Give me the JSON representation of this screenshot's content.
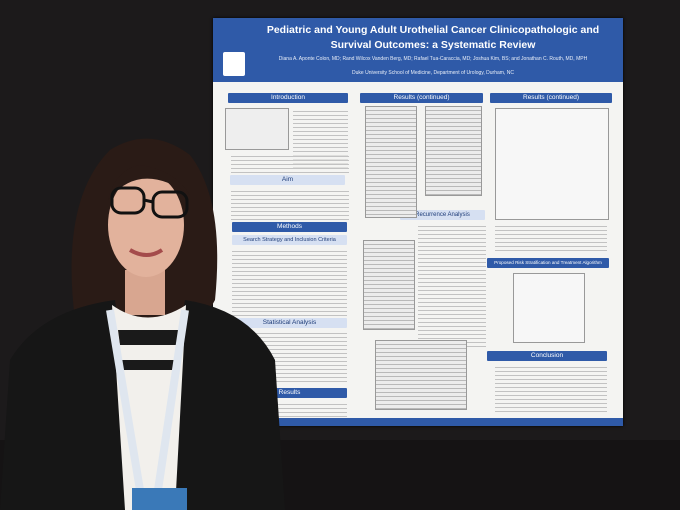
{
  "poster": {
    "title": "Pediatric and Young Adult Urothelial Cancer Clinicopathologic and Survival Outcomes: a Systematic Review",
    "authors": "Diana A. Aponte Colon, MD; Rand Wilcox Vanden Berg, MD; Rafael Tua-Caraccia, MD; Joshua Kim, BS; and Jonathan C. Routh, MD, MPH",
    "affiliation": "Duke University School of Medicine, Department of Urology, Durham, NC",
    "sections": [
      {
        "heading": "Introduction"
      },
      {
        "heading": "Results (continued)"
      },
      {
        "heading": "Results (continued)"
      },
      {
        "heading": "Aim"
      },
      {
        "heading": "Methods"
      },
      {
        "heading": "Search Strategy and Inclusion Criteria"
      },
      {
        "heading": "Recurrence Analysis"
      },
      {
        "heading": "Proposed Risk Stratification and Treatment Algorithm"
      },
      {
        "heading": "Statistical Analysis"
      },
      {
        "heading": "Results"
      },
      {
        "heading": "Conclusion"
      }
    ]
  }
}
